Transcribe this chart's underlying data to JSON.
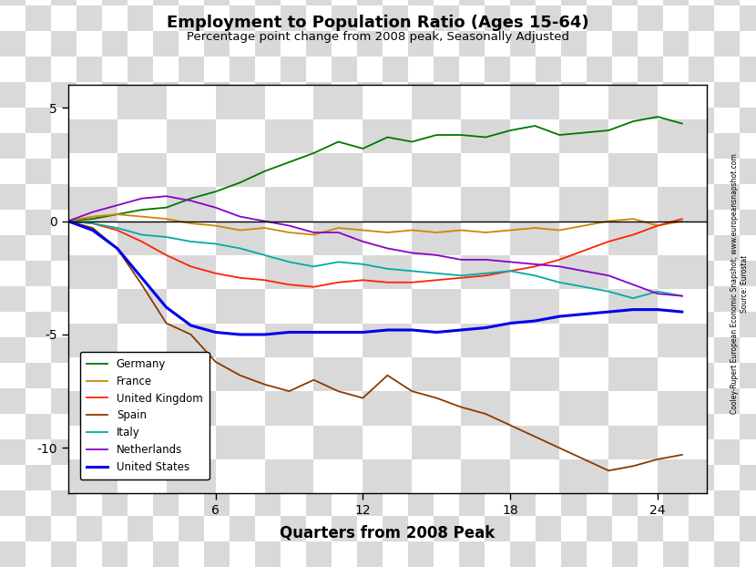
{
  "title": "Employment to Population Ratio (Ages 15-64)",
  "subtitle": "Percentage point change from 2008 peak, Seasonally Adjusted",
  "xlabel": "Quarters from 2008 Peak",
  "xlim": [
    0,
    26
  ],
  "ylim": [
    -12,
    6
  ],
  "yticks": [
    -10,
    -5,
    0,
    5
  ],
  "xticks": [
    6,
    12,
    18,
    24
  ],
  "checker_light": "#d9d9d9",
  "checker_white": "#ffffff",
  "series": {
    "Germany": {
      "color": "#007700",
      "lw": 1.3,
      "data": [
        0,
        0.1,
        0.3,
        0.5,
        0.6,
        1.0,
        1.3,
        1.7,
        2.2,
        2.6,
        3.0,
        3.5,
        3.2,
        3.7,
        3.5,
        3.8,
        3.8,
        3.7,
        4.0,
        4.2,
        3.8,
        3.9,
        4.0,
        4.4,
        4.6,
        4.3
      ]
    },
    "France": {
      "color": "#cc8800",
      "lw": 1.3,
      "data": [
        0,
        0.2,
        0.3,
        0.2,
        0.1,
        -0.1,
        -0.2,
        -0.4,
        -0.3,
        -0.5,
        -0.6,
        -0.3,
        -0.4,
        -0.5,
        -0.4,
        -0.5,
        -0.4,
        -0.5,
        -0.4,
        -0.3,
        -0.4,
        -0.2,
        0.0,
        0.1,
        -0.2,
        0.0
      ]
    },
    "United Kingdom": {
      "color": "#ff2200",
      "lw": 1.3,
      "data": [
        0,
        -0.1,
        -0.4,
        -0.9,
        -1.5,
        -2.0,
        -2.3,
        -2.5,
        -2.6,
        -2.8,
        -2.9,
        -2.7,
        -2.6,
        -2.7,
        -2.7,
        -2.6,
        -2.5,
        -2.4,
        -2.2,
        -2.0,
        -1.7,
        -1.3,
        -0.9,
        -0.6,
        -0.2,
        0.1
      ]
    },
    "Spain": {
      "color": "#8B3A00",
      "lw": 1.3,
      "data": [
        0,
        -0.3,
        -1.2,
        -2.8,
        -4.5,
        -5.0,
        -6.2,
        -6.8,
        -7.2,
        -7.5,
        -7.0,
        -7.5,
        -7.8,
        -6.8,
        -7.5,
        -7.8,
        -8.2,
        -8.5,
        -9.0,
        -9.5,
        -10.0,
        -10.5,
        -11.0,
        -10.8,
        -10.5,
        -10.3
      ]
    },
    "Italy": {
      "color": "#00aaaa",
      "lw": 1.3,
      "data": [
        0,
        -0.1,
        -0.3,
        -0.6,
        -0.7,
        -0.9,
        -1.0,
        -1.2,
        -1.5,
        -1.8,
        -2.0,
        -1.8,
        -1.9,
        -2.1,
        -2.2,
        -2.3,
        -2.4,
        -2.3,
        -2.2,
        -2.4,
        -2.7,
        -2.9,
        -3.1,
        -3.4,
        -3.1,
        -3.3
      ]
    },
    "Netherlands": {
      "color": "#8800cc",
      "lw": 1.3,
      "data": [
        0,
        0.4,
        0.7,
        1.0,
        1.1,
        0.9,
        0.6,
        0.2,
        0.0,
        -0.2,
        -0.5,
        -0.5,
        -0.9,
        -1.2,
        -1.4,
        -1.5,
        -1.7,
        -1.7,
        -1.8,
        -1.9,
        -2.0,
        -2.2,
        -2.4,
        -2.8,
        -3.2,
        -3.3
      ]
    },
    "United States": {
      "color": "#0000ee",
      "lw": 2.2,
      "data": [
        0,
        -0.4,
        -1.2,
        -2.5,
        -3.8,
        -4.6,
        -4.9,
        -5.0,
        -5.0,
        -4.9,
        -4.9,
        -4.9,
        -4.9,
        -4.8,
        -4.8,
        -4.9,
        -4.8,
        -4.7,
        -4.5,
        -4.4,
        -4.2,
        -4.1,
        -4.0,
        -3.9,
        -3.9,
        -4.0
      ]
    }
  }
}
